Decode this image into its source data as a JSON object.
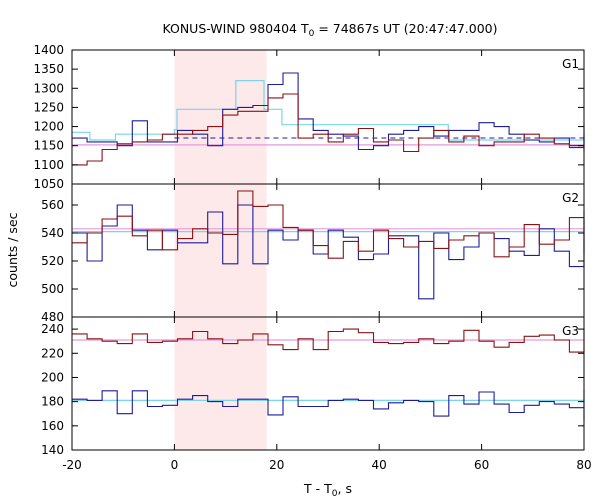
{
  "chart_data": {
    "type": "line",
    "title": "KONUS-WIND 980404 T",
    "title_sub": "0",
    "title_rest": " = 74867s UT (20:47:47.000)",
    "xlabel": "T - T",
    "xlabel_sub": "0",
    "xlabel_rest": ", s",
    "ylabel": "counts / sec",
    "xlim": [
      -20,
      80
    ],
    "x_ticks": [
      "-20",
      "0",
      "20",
      "40",
      "60",
      "80"
    ],
    "highlight_interval": [
      0,
      18
    ],
    "panels": [
      {
        "name": "G1",
        "ylim": [
          1050,
          1400
        ],
        "y_ticks": [
          "1050",
          "1100",
          "1150",
          "1200",
          "1250",
          "1300",
          "1350",
          "1400"
        ],
        "series": [
          {
            "color": "#1c1c9c",
            "x0": -20,
            "step": 2.944,
            "values": [
              1170,
              1160,
              1160,
              1150,
              1215,
              1160,
              1160,
              1190,
              1180,
              1150,
              1245,
              1250,
              1255,
              1310,
              1340,
              1220,
              1190,
              1180,
              1175,
              1140,
              1150,
              1180,
              1190,
              1200,
              1175,
              1190,
              1190,
              1210,
              1200,
              1180,
              1165,
              1160,
              1170,
              1150,
              1170,
              1180,
              1150,
              1200,
              1205,
              1185,
              1150,
              1190,
              1200,
              1160,
              1200,
              1155,
              1165,
              1170
            ]
          },
          {
            "color": "#8b1212",
            "x0": -20,
            "step": 2.944,
            "values": [
              1100,
              1110,
              1140,
              1155,
              1160,
              1165,
              1180,
              1180,
              1190,
              1200,
              1230,
              1240,
              1240,
              1275,
              1285,
              1170,
              1180,
              1160,
              1180,
              1195,
              1160,
              1165,
              1135,
              1170,
              1190,
              1160,
              1175,
              1150,
              1160,
              1160,
              1180,
              1170,
              1155,
              1145,
              1150,
              1170,
              1135,
              1145,
              1150,
              1160,
              1180,
              1150,
              1155,
              1145,
              1165,
              1160,
              1170,
              1145
            ]
          }
        ],
        "fits": [
          {
            "color": "#7ad4ec",
            "points": [
              [
                -20,
                1185
              ],
              [
                -16.5,
                1185
              ],
              [
                -16.5,
                1165
              ],
              [
                -11.5,
                1165
              ],
              [
                -11.5,
                1180
              ],
              [
                0,
                1180
              ],
              [
                0,
                1192
              ],
              [
                0.5,
                1192
              ],
              [
                0.5,
                1245
              ],
              [
                12,
                1245
              ],
              [
                12,
                1320
              ],
              [
                17.5,
                1320
              ],
              [
                17.5,
                1245
              ],
              [
                21,
                1245
              ],
              [
                21,
                1205
              ],
              [
                53.5,
                1205
              ],
              [
                53.5,
                1165
              ],
              [
                80,
                1165
              ]
            ]
          },
          {
            "color": "#e59ae0",
            "points": [
              [
                -20,
                1152
              ],
              [
                80,
                1152
              ]
            ]
          }
        ],
        "bg_levels": [
          {
            "color": "#1c1c9c",
            "value": 1170,
            "x_start": 0
          },
          {
            "color": "#8b1212",
            "value": 1152,
            "x_start": 0
          }
        ]
      },
      {
        "name": "G2",
        "ylim": [
          480,
          575
        ],
        "y_ticks": [
          "480",
          "500",
          "520",
          "540",
          "560"
        ],
        "series": [
          {
            "color": "#1c1c9c",
            "x0": -20,
            "step": 2.944,
            "values": [
              540,
              520,
              545,
              560,
              542,
              528,
              542,
              533,
              533,
              555,
              518,
              560,
              518,
              542,
              535,
              542,
              525,
              542,
              537,
              521,
              525,
              538,
              538,
              493,
              540,
              521,
              530,
              540,
              536,
              527,
              524,
              543,
              527,
              516,
              543,
              520,
              530,
              540,
              535,
              525,
              528,
              526,
              520,
              536,
              528,
              541,
              537,
              550
            ]
          },
          {
            "color": "#8b1212",
            "x0": -20,
            "step": 2.944,
            "values": [
              533,
              540,
              550,
              552,
              538,
              542,
              528,
              536,
              543,
              540,
              539,
              570,
              559,
              560,
              544,
              542,
              531,
              522,
              534,
              527,
              542,
              536,
              530,
              534,
              529,
              535,
              538,
              540,
              523,
              530,
              546,
              532,
              535,
              551,
              556,
              540,
              530,
              542,
              534,
              528,
              548,
              533,
              542,
              546,
              537,
              525,
              542,
              540
            ]
          }
        ],
        "fits": [
          {
            "color": "#7ad4ec",
            "points": [
              [
                -20,
                541
              ],
              [
                80,
                541
              ]
            ]
          },
          {
            "color": "#e59ae0",
            "points": [
              [
                -20,
                543
              ],
              [
                80,
                543
              ]
            ]
          }
        ],
        "bg_levels": []
      },
      {
        "name": "G3",
        "ylim": [
          140,
          250
        ],
        "y_ticks": [
          "140",
          "160",
          "180",
          "200",
          "220",
          "240"
        ],
        "series": [
          {
            "color": "#1c1c9c",
            "x0": -20,
            "step": 2.944,
            "values": [
              182,
              181,
              189,
              170,
              189,
              176,
              177,
              182,
              185,
              180,
              176,
              182,
              182,
              169,
              184,
              176,
              176,
              181,
              182,
              181,
              174,
              179,
              181,
              180,
              168,
              185,
              178,
              188,
              178,
              171,
              177,
              180,
              178,
              175,
              180,
              174,
              180,
              183,
              165,
              176,
              182,
              189,
              170,
              188,
              172,
              179,
              180,
              164
            ]
          },
          {
            "color": "#8b1212",
            "x0": -20,
            "step": 2.944,
            "values": [
              236,
              232,
              230,
              228,
              236,
              229,
              230,
              232,
              238,
              232,
              228,
              231,
              236,
              227,
              223,
              232,
              223,
              238,
              240,
              237,
              229,
              228,
              229,
              232,
              228,
              230,
              239,
              230,
              225,
              229,
              234,
              235,
              231,
              221,
              228,
              232,
              234,
              232,
              236,
              229,
              229,
              234,
              241,
              228,
              230,
              237,
              240,
              228
            ]
          }
        ],
        "fits": [
          {
            "color": "#7ad4ec",
            "points": [
              [
                -20,
                181
              ],
              [
                80,
                181
              ]
            ]
          },
          {
            "color": "#e59ae0",
            "points": [
              [
                -20,
                231
              ],
              [
                80,
                231
              ]
            ]
          }
        ],
        "bg_levels": []
      }
    ]
  }
}
